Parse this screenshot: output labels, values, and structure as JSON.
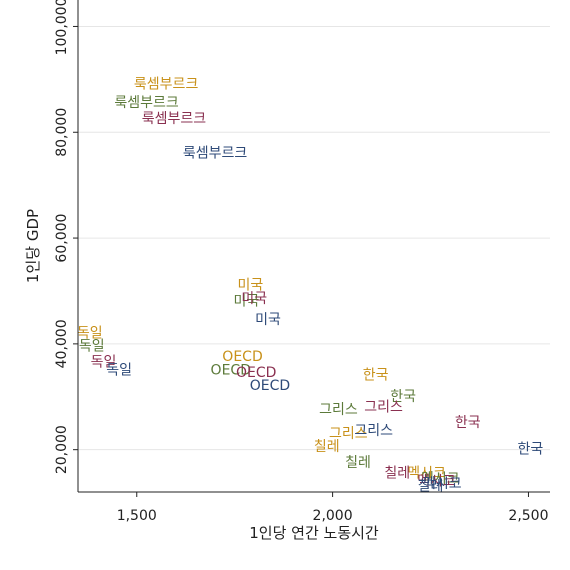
{
  "chart_data": {
    "type": "scatter",
    "xlabel": "1인당 연간 노동시간",
    "ylabel": "1인당 GDP",
    "xlim": [
      1350,
      2555
    ],
    "ylim": [
      12000,
      105000
    ],
    "x_ticks": [
      1500,
      2000,
      2500
    ],
    "x_tick_labels": [
      "1,500",
      "2,000",
      "2,500"
    ],
    "y_ticks": [
      20000,
      40000,
      60000,
      80000,
      100000
    ],
    "y_tick_labels": [
      "20,000",
      "40,000",
      "60,000",
      "80,000",
      "100,000"
    ],
    "grid": "horizontal",
    "series": [
      {
        "color": "#c8911a",
        "points": [
          {
            "label": "룩셈부르크",
            "x": 1575,
            "y": 89000
          },
          {
            "label": "미국",
            "x": 1790,
            "y": 51000
          },
          {
            "label": "독일",
            "x": 1380,
            "y": 42000
          },
          {
            "label": "OECD",
            "x": 1770,
            "y": 37500
          },
          {
            "label": "한국",
            "x": 2110,
            "y": 34000
          },
          {
            "label": "그리스",
            "x": 2040,
            "y": 23000
          },
          {
            "label": "칠레",
            "x": 1985,
            "y": 20500
          },
          {
            "label": "멕시코",
            "x": 2240,
            "y": 15500
          }
        ]
      },
      {
        "color": "#5c7a3a",
        "points": [
          {
            "label": "룩셈부르크",
            "x": 1525,
            "y": 85500
          },
          {
            "label": "미국",
            "x": 1780,
            "y": 48000
          },
          {
            "label": "독일",
            "x": 1385,
            "y": 39500
          },
          {
            "label": "OECD",
            "x": 1740,
            "y": 35000
          },
          {
            "label": "한국",
            "x": 2180,
            "y": 30000
          },
          {
            "label": "그리스",
            "x": 2015,
            "y": 27500
          },
          {
            "label": "칠레",
            "x": 2065,
            "y": 17500
          },
          {
            "label": "멕시코",
            "x": 2275,
            "y": 14500
          }
        ]
      },
      {
        "color": "#8a3050",
        "points": [
          {
            "label": "룩셈부르크",
            "x": 1595,
            "y": 82500
          },
          {
            "label": "미국",
            "x": 1800,
            "y": 48500
          },
          {
            "label": "독일",
            "x": 1415,
            "y": 36500
          },
          {
            "label": "OECD",
            "x": 1805,
            "y": 34500
          },
          {
            "label": "한국",
            "x": 2345,
            "y": 25000
          },
          {
            "label": "그리스",
            "x": 2130,
            "y": 28000
          },
          {
            "label": "칠레",
            "x": 2165,
            "y": 15500
          },
          {
            "label": "멕시코",
            "x": 2265,
            "y": 14000
          }
        ]
      },
      {
        "color": "#2e4a78",
        "points": [
          {
            "label": "룩셈부르크",
            "x": 1700,
            "y": 76000
          },
          {
            "label": "미국",
            "x": 1835,
            "y": 44500
          },
          {
            "label": "독일",
            "x": 1455,
            "y": 35000
          },
          {
            "label": "OECD",
            "x": 1840,
            "y": 32000
          },
          {
            "label": "한국",
            "x": 2505,
            "y": 20000
          },
          {
            "label": "그리스",
            "x": 2105,
            "y": 23500
          },
          {
            "label": "칠레",
            "x": 2250,
            "y": 13000
          },
          {
            "label": "멕시코",
            "x": 2280,
            "y": 13500
          }
        ]
      }
    ]
  }
}
